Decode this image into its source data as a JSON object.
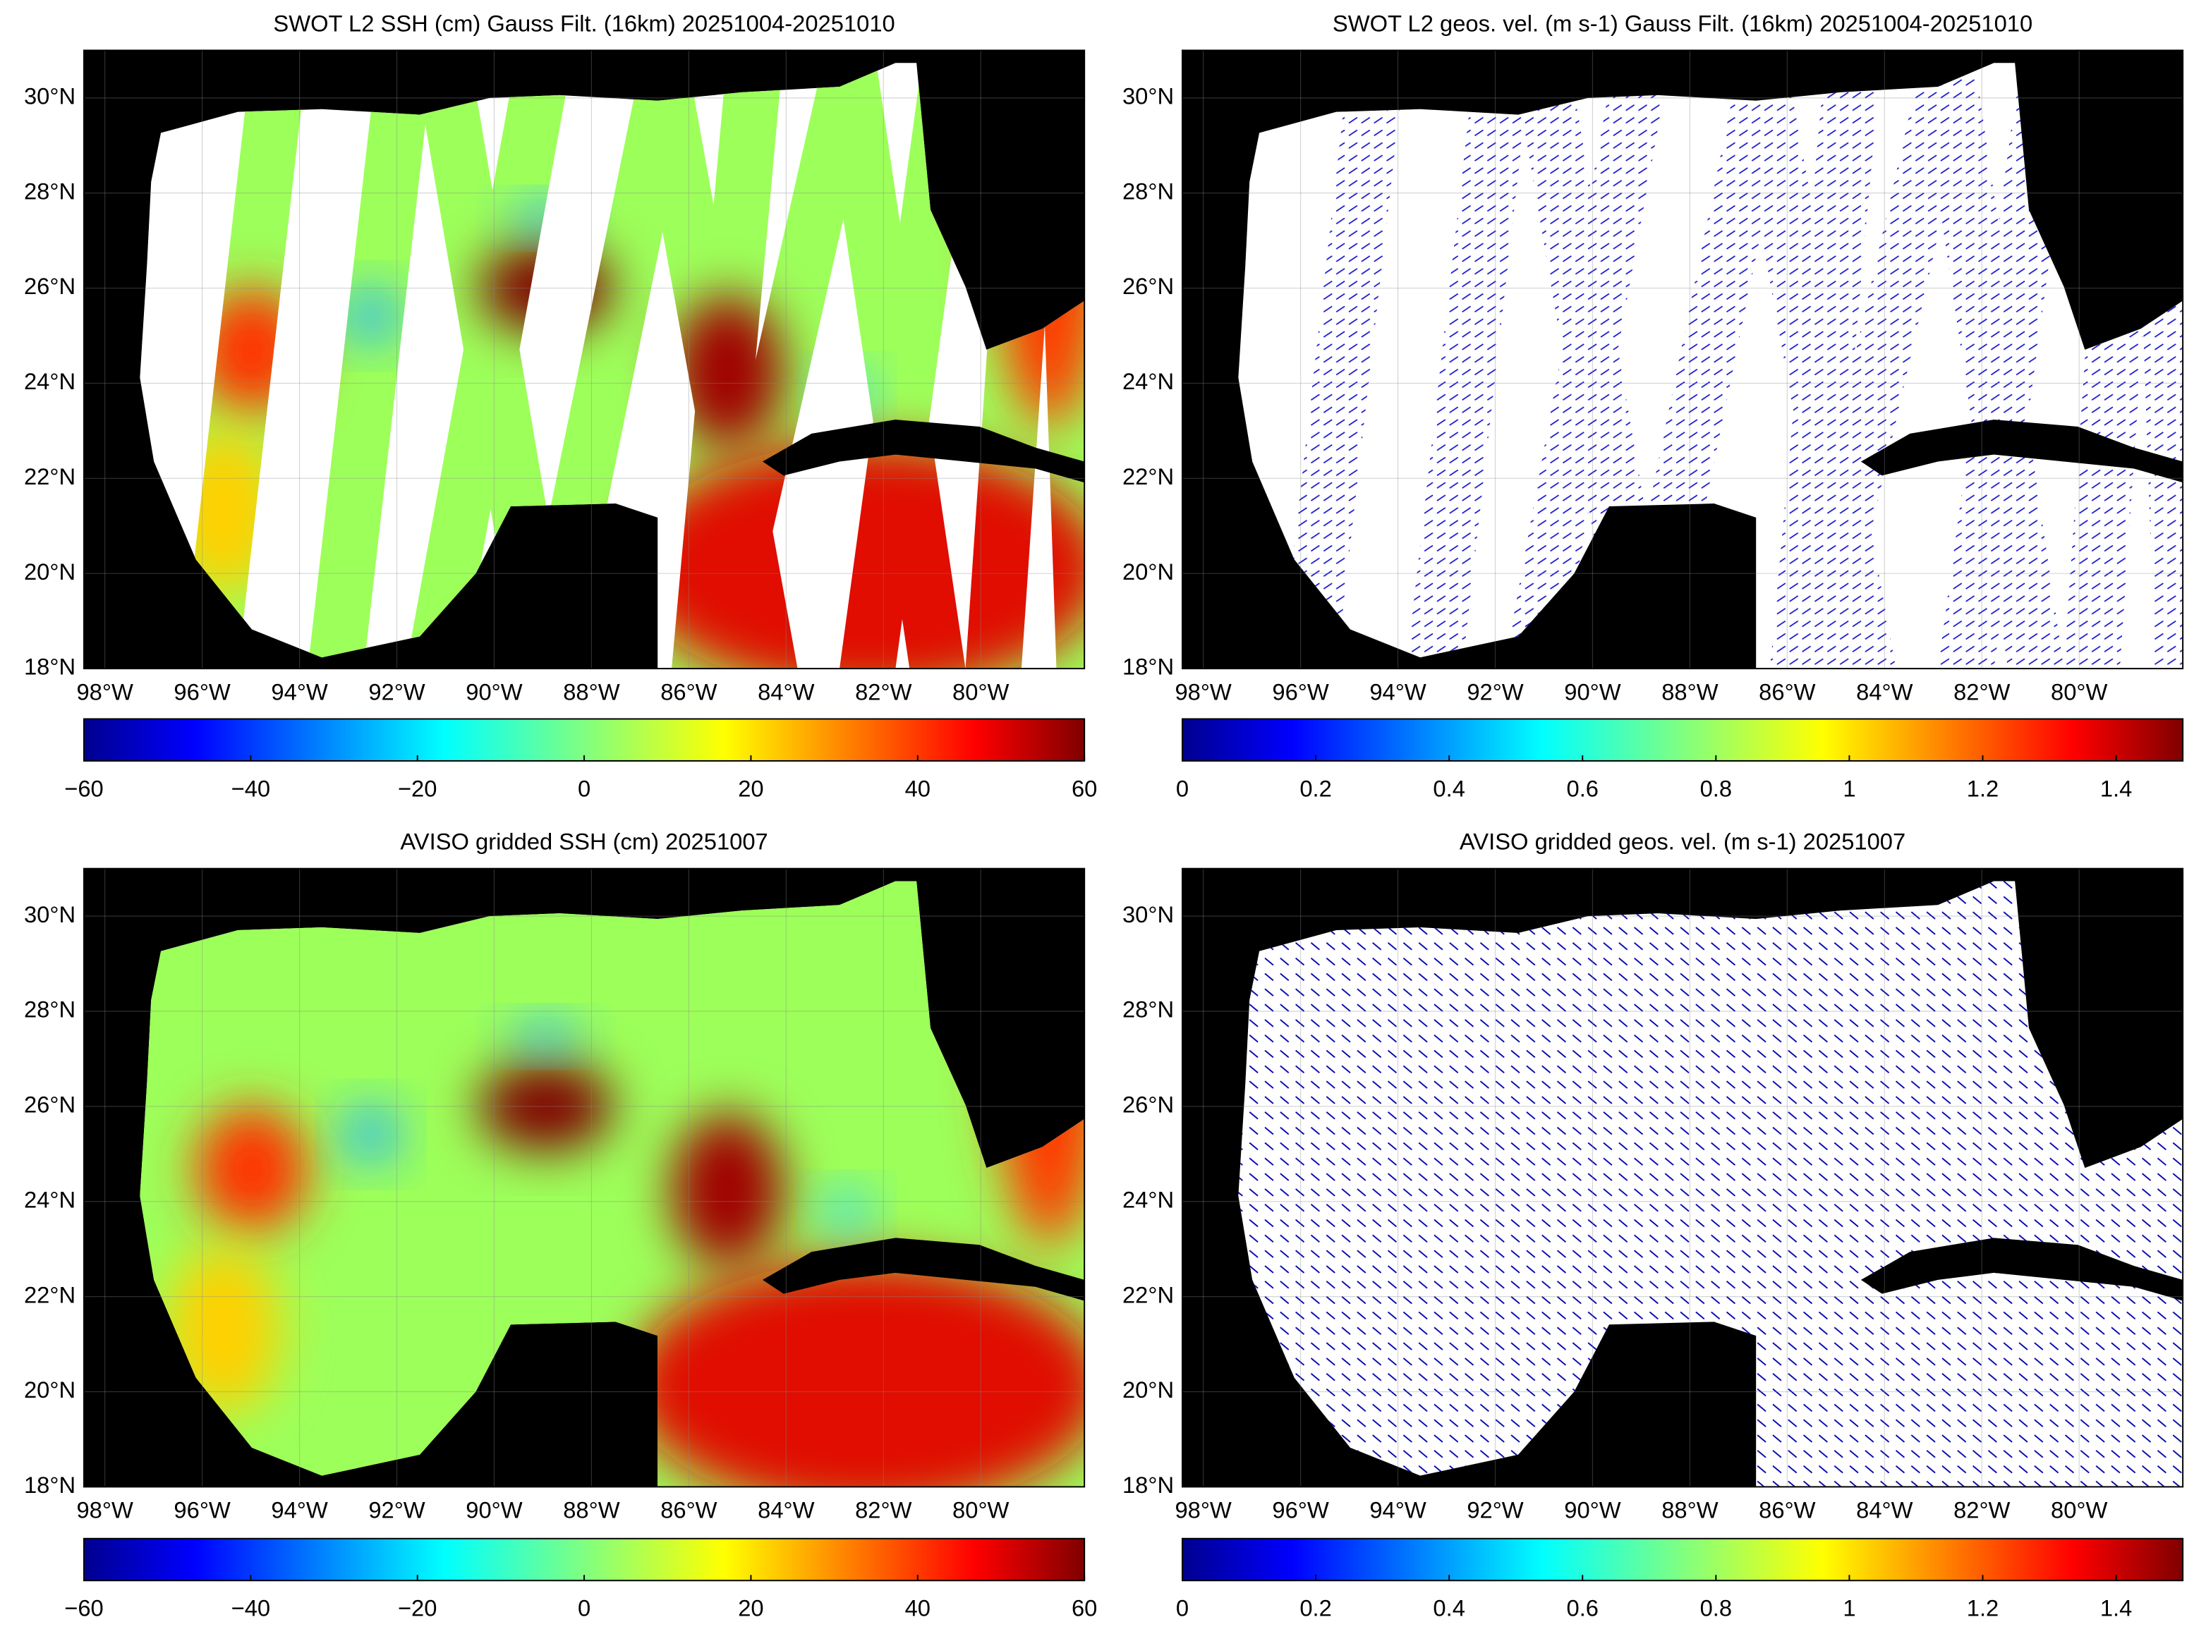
{
  "panels": [
    {
      "title": "SWOT L2 SSH (cm) Gauss Filt. (16km) 20251004-20251010",
      "lat_lim": [
        18,
        31
      ],
      "lon_lim": [
        -98.43,
        -77.87
      ],
      "lat_ticks": [
        {
          "value": 18,
          "label": "18°N"
        },
        {
          "value": 20,
          "label": "20°N"
        },
        {
          "value": 22,
          "label": "22°N"
        },
        {
          "value": 24,
          "label": "24°N"
        },
        {
          "value": 26,
          "label": "26°N"
        },
        {
          "value": 28,
          "label": "28°N"
        },
        {
          "value": 30,
          "label": "30°N"
        }
      ],
      "lon_ticks": [
        {
          "value": -98,
          "label": "98°W"
        },
        {
          "value": -96,
          "label": "96°W"
        },
        {
          "value": -94,
          "label": "94°W"
        },
        {
          "value": -92,
          "label": "92°W"
        },
        {
          "value": -90,
          "label": "90°W"
        },
        {
          "value": -88,
          "label": "88°W"
        },
        {
          "value": -86,
          "label": "86°W"
        },
        {
          "value": -84,
          "label": "84°W"
        },
        {
          "value": -82,
          "label": "82°W"
        },
        {
          "value": -80,
          "label": "80°W"
        }
      ],
      "colorbar": {
        "lim": [
          -60,
          60
        ],
        "ticks": [
          {
            "value": -60,
            "label": "−60"
          },
          {
            "value": -40,
            "label": "−40"
          },
          {
            "value": -20,
            "label": "−20"
          },
          0,
          20,
          40,
          60
        ]
      }
    },
    {
      "title": "SWOT L2 geos. vel. (m s-1) Gauss Filt. (16km) 20251004-20251010",
      "lat_lim": [
        18,
        31
      ],
      "lon_lim": [
        -98.43,
        -77.87
      ],
      "lat_ticks": [
        {
          "value": 18,
          "label": "18°N"
        },
        {
          "value": 20,
          "label": "20°N"
        },
        {
          "value": 22,
          "label": "22°N"
        },
        {
          "value": 24,
          "label": "24°N"
        },
        {
          "value": 26,
          "label": "26°N"
        },
        {
          "value": 28,
          "label": "28°N"
        },
        {
          "value": 30,
          "label": "30°N"
        }
      ],
      "lon_ticks": [
        {
          "value": -98,
          "label": "98°W"
        },
        {
          "value": -96,
          "label": "96°W"
        },
        {
          "value": -94,
          "label": "94°W"
        },
        {
          "value": -92,
          "label": "92°W"
        },
        {
          "value": -90,
          "label": "90°W"
        },
        {
          "value": -88,
          "label": "88°W"
        },
        {
          "value": -86,
          "label": "86°W"
        },
        {
          "value": -84,
          "label": "84°W"
        },
        {
          "value": -82,
          "label": "82°W"
        },
        {
          "value": -80,
          "label": "80°W"
        }
      ],
      "colorbar": {
        "lim": [
          0,
          1.5
        ],
        "ticks": [
          0,
          0.2,
          0.4,
          0.6,
          0.8,
          1,
          1.2,
          1.4
        ]
      }
    },
    {
      "title": "AVISO gridded SSH (cm) 20251007",
      "lat_lim": [
        18,
        31
      ],
      "lon_lim": [
        -98.43,
        -77.87
      ],
      "lat_ticks": [
        {
          "value": 18,
          "label": "18°N"
        },
        {
          "value": 20,
          "label": "20°N"
        },
        {
          "value": 22,
          "label": "22°N"
        },
        {
          "value": 24,
          "label": "24°N"
        },
        {
          "value": 26,
          "label": "26°N"
        },
        {
          "value": 28,
          "label": "28°N"
        },
        {
          "value": 30,
          "label": "30°N"
        }
      ],
      "lon_ticks": [
        {
          "value": -98,
          "label": "98°W"
        },
        {
          "value": -96,
          "label": "96°W"
        },
        {
          "value": -94,
          "label": "94°W"
        },
        {
          "value": -92,
          "label": "92°W"
        },
        {
          "value": -90,
          "label": "90°W"
        },
        {
          "value": -88,
          "label": "88°W"
        },
        {
          "value": -86,
          "label": "86°W"
        },
        {
          "value": -84,
          "label": "84°W"
        },
        {
          "value": -82,
          "label": "82°W"
        },
        {
          "value": -80,
          "label": "80°W"
        }
      ],
      "colorbar": {
        "lim": [
          -60,
          60
        ],
        "ticks": [
          {
            "value": -60,
            "label": "−60"
          },
          {
            "value": -40,
            "label": "−40"
          },
          {
            "value": -20,
            "label": "−20"
          },
          0,
          20,
          40,
          60
        ]
      }
    },
    {
      "title": "AVISO gridded geos. vel. (m s-1)  20251007",
      "lat_lim": [
        18,
        31
      ],
      "lon_lim": [
        -98.43,
        -77.87
      ],
      "lat_ticks": [
        {
          "value": 18,
          "label": "18°N"
        },
        {
          "value": 20,
          "label": "20°N"
        },
        {
          "value": 22,
          "label": "22°N"
        },
        {
          "value": 24,
          "label": "24°N"
        },
        {
          "value": 26,
          "label": "26°N"
        },
        {
          "value": 28,
          "label": "28°N"
        },
        {
          "value": 30,
          "label": "30°N"
        }
      ],
      "lon_ticks": [
        {
          "value": -98,
          "label": "98°W"
        },
        {
          "value": -96,
          "label": "96°W"
        },
        {
          "value": -94,
          "label": "94°W"
        },
        {
          "value": -92,
          "label": "92°W"
        },
        {
          "value": -90,
          "label": "90°W"
        },
        {
          "value": -88,
          "label": "88°W"
        },
        {
          "value": -86,
          "label": "86°W"
        },
        {
          "value": -84,
          "label": "84°W"
        },
        {
          "value": -82,
          "label": "82°W"
        },
        {
          "value": -80,
          "label": "80°W"
        }
      ],
      "colorbar": {
        "lim": [
          0,
          1.5
        ],
        "ticks": [
          0,
          0.2,
          0.4,
          0.6,
          0.8,
          1,
          1.2,
          1.4
        ]
      }
    }
  ]
}
